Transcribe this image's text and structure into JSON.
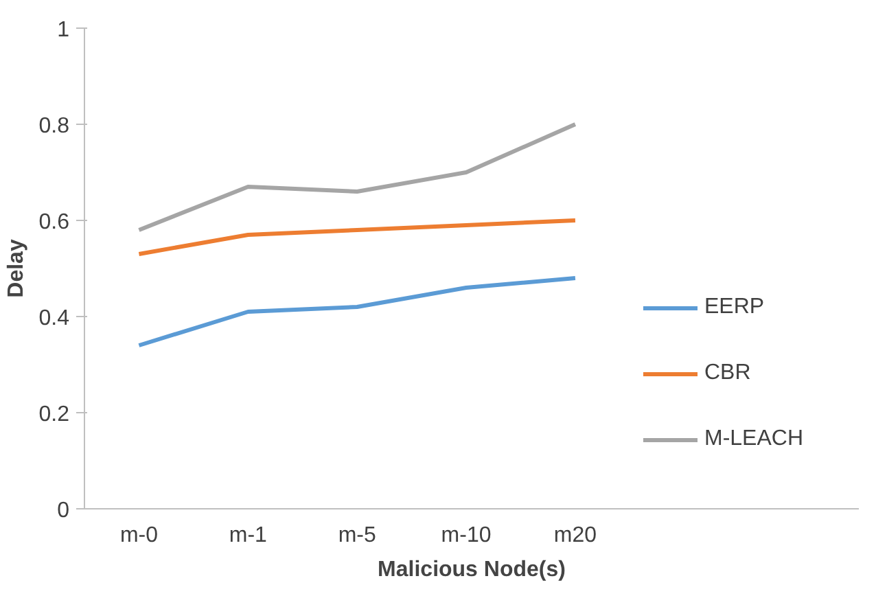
{
  "chart_data": {
    "type": "line",
    "xlabel": "Malicious Node(s)",
    "ylabel": "Delay",
    "categories": [
      "m-0",
      "m-1",
      "m-5",
      "m-10",
      "m20"
    ],
    "series": [
      {
        "name": "EERP",
        "color": "#5b9bd5",
        "values": [
          0.34,
          0.41,
          0.42,
          0.46,
          0.48
        ]
      },
      {
        "name": "CBR",
        "color": "#ed7d31",
        "values": [
          0.53,
          0.57,
          0.58,
          0.59,
          0.6
        ]
      },
      {
        "name": "M-LEACH",
        "color": "#a5a5a5",
        "values": [
          0.58,
          0.67,
          0.66,
          0.7,
          0.8
        ]
      }
    ],
    "ylim": [
      0,
      1
    ],
    "yticks": [
      0,
      0.2,
      0.4,
      0.6,
      0.8,
      1
    ],
    "grid": false,
    "legend": "right",
    "marker": "none",
    "line_style": "solid"
  }
}
